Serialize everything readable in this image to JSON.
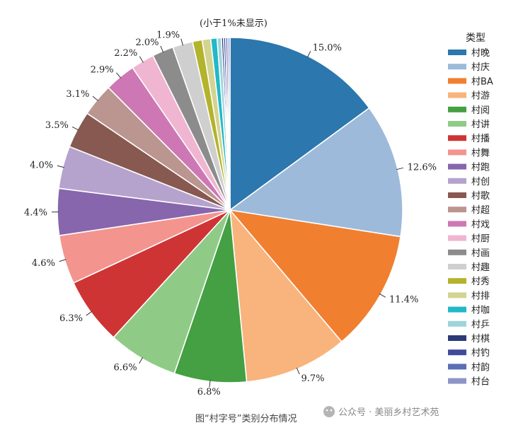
{
  "chart_data": {
    "type": "pie",
    "note": "(小于1%未显示)",
    "legend_title": "类型",
    "legend_placement": "right",
    "caption": "图“村字号”类别分布情况",
    "slices": [
      {
        "name": "村晚",
        "value": 15.0,
        "label": "15.0%",
        "color": "#2c77ad"
      },
      {
        "name": "村庆",
        "value": 12.6,
        "label": "12.6%",
        "color": "#9dbada"
      },
      {
        "name": "村BA",
        "value": 11.4,
        "label": "11.4%",
        "color": "#f17f30"
      },
      {
        "name": "村游",
        "value": 9.7,
        "label": "9.7%",
        "color": "#f8b47c"
      },
      {
        "name": "村阅",
        "value": 6.8,
        "label": "6.8%",
        "color": "#44a043"
      },
      {
        "name": "村讲",
        "value": 6.6,
        "label": "6.6%",
        "color": "#8fcb87"
      },
      {
        "name": "村播",
        "value": 6.3,
        "label": "6.3%",
        "color": "#cf3434"
      },
      {
        "name": "村舞",
        "value": 4.6,
        "label": "4.6%",
        "color": "#f3948f"
      },
      {
        "name": "村跑",
        "value": 4.4,
        "label": "4.4%",
        "color": "#8766ad"
      },
      {
        "name": "村创",
        "value": 4.0,
        "label": "4.0%",
        "color": "#b5a3ce"
      },
      {
        "name": "村歌",
        "value": 3.5,
        "label": "3.5%",
        "color": "#885950"
      },
      {
        "name": "村超",
        "value": 3.1,
        "label": "3.1%",
        "color": "#bb958f"
      },
      {
        "name": "村戏",
        "value": 2.9,
        "label": "2.9%",
        "color": "#cd78b4"
      },
      {
        "name": "村厨",
        "value": 2.2,
        "label": "2.2%",
        "color": "#f0b5d1"
      },
      {
        "name": "村画",
        "value": 2.0,
        "label": "2.0%",
        "color": "#8c8c8c"
      },
      {
        "name": "村趣",
        "value": 1.9,
        "label": "1.9%",
        "color": "#cfcfcf"
      },
      {
        "name": "村秀",
        "value": 0.9,
        "label": "",
        "color": "#b3b32d"
      },
      {
        "name": "村排",
        "value": 0.8,
        "label": "",
        "color": "#d4d492"
      },
      {
        "name": "村咖",
        "value": 0.6,
        "label": "",
        "color": "#23b8c7"
      },
      {
        "name": "村乒",
        "value": 0.4,
        "label": "",
        "color": "#9ed4dd"
      },
      {
        "name": "村棋",
        "value": 0.2,
        "label": "",
        "color": "#2d3a78"
      },
      {
        "name": "村钓",
        "value": 0.2,
        "label": "",
        "color": "#414b9c"
      },
      {
        "name": "村韵",
        "value": 0.2,
        "label": "",
        "color": "#5b6fb5"
      },
      {
        "name": "村台",
        "value": 0.2,
        "label": "",
        "color": "#8d95c8"
      }
    ]
  },
  "watermark": "公众号 · 美丽乡村艺术苑"
}
